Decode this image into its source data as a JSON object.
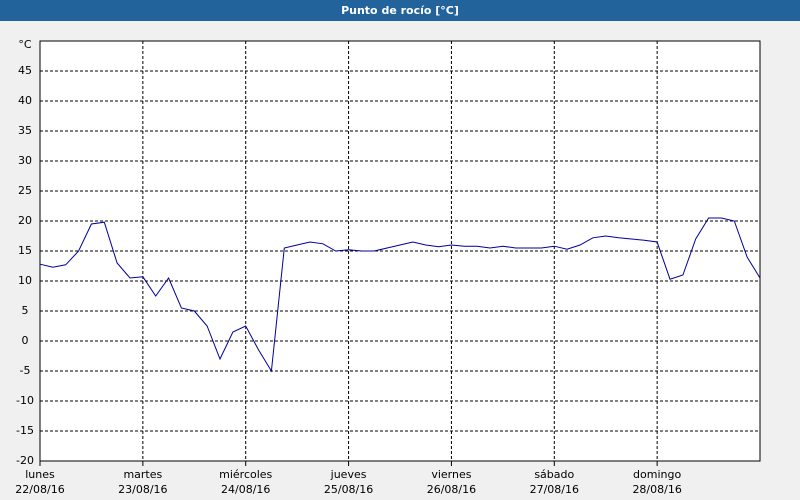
{
  "chart_data": {
    "type": "line",
    "title": "Punto de rocío [°C]",
    "days": [
      {
        "weekday": "lunes",
        "date": "22/08/16"
      },
      {
        "weekday": "martes",
        "date": "23/08/16"
      },
      {
        "weekday": "miércoles",
        "date": "24/08/16"
      },
      {
        "weekday": "jueves",
        "date": "25/08/16"
      },
      {
        "weekday": "viernes",
        "date": "26/08/16"
      },
      {
        "weekday": "sábado",
        "date": "27/08/16"
      },
      {
        "weekday": "domingo",
        "date": "28/08/16"
      }
    ],
    "series": [
      {
        "name": "Punto de rocío",
        "color": "#000099",
        "values": [
          12.8,
          12.3,
          12.7,
          15,
          19.5,
          19.8,
          13,
          10.5,
          10.7,
          7.5,
          10.5,
          5.5,
          5,
          2.5,
          -3,
          1.5,
          2.5,
          -1.5,
          -5,
          15.5,
          16,
          16.5,
          16.2,
          15,
          15.2,
          15,
          15,
          15.5,
          16,
          16.5,
          16,
          15.7,
          16,
          15.8,
          15.8,
          15.5,
          15.8,
          15.5,
          15.5,
          15.5,
          15.8,
          15.3,
          16,
          17.2,
          17.5,
          17.2,
          17,
          16.8,
          16.5,
          10.3,
          11,
          17,
          20.5,
          20.5,
          20,
          14,
          10.5
        ]
      }
    ],
    "ylim": [
      -20,
      50
    ],
    "yticks": [
      -20,
      -15,
      -10,
      -5,
      0,
      5,
      10,
      15,
      20,
      25,
      30,
      35,
      40,
      45,
      {
        "value": 50,
        "label": "°C"
      }
    ],
    "grid": true
  }
}
